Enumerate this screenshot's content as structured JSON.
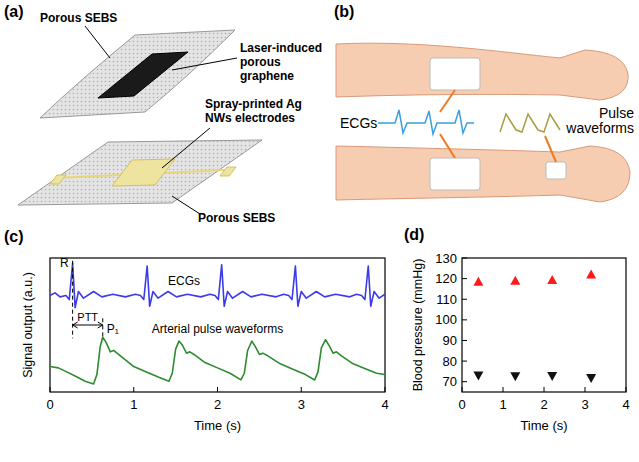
{
  "panel_labels": [
    "(a)",
    "(b)",
    "(c)",
    "(d)"
  ],
  "diagram_a": {
    "labels": [
      "Porous SEBS",
      "Laser-induced porous graphene",
      "Spray-printed Ag NWs electrodes",
      "Porous SEBS"
    ]
  },
  "diagram_b": {
    "labels": [
      "ECGs",
      "Pulse waveforms"
    ]
  },
  "chart_data": [
    {
      "type": "line",
      "x_label": "Time (s)",
      "y_label": "Signal output (a.u.)",
      "xlim": [
        0,
        4
      ],
      "xticks": [
        0,
        1,
        2,
        3,
        4
      ],
      "ylim": [
        0,
        10
      ],
      "tick_labels": "x",
      "series": [
        {
          "name": "ECGs",
          "color": "#3b3bec",
          "x": [
            0,
            0.06,
            0.12,
            0.19,
            0.23,
            0.27,
            0.3,
            0.34,
            0.4,
            0.52,
            0.62,
            0.75,
            0.9,
            1.02,
            1.08,
            1.12,
            1.16,
            1.19,
            1.23,
            1.29,
            1.41,
            1.51,
            1.64,
            1.8,
            1.91,
            1.97,
            2.01,
            2.05,
            2.08,
            2.12,
            2.18,
            2.3,
            2.4,
            2.53,
            2.7,
            2.79,
            2.85,
            2.89,
            2.93,
            2.96,
            3.0,
            3.06,
            3.18,
            3.28,
            3.41,
            3.58,
            3.66,
            3.72,
            3.76,
            3.8,
            3.83,
            3.87,
            3.93,
            4.0
          ],
          "values": [
            7.2,
            7.4,
            7.1,
            7.2,
            6.9,
            9.6,
            6.3,
            7.5,
            7.0,
            7.5,
            7.1,
            7.3,
            7.1,
            7.3,
            7.2,
            6.9,
            9.4,
            6.4,
            7.5,
            7.0,
            7.5,
            7.1,
            7.3,
            7.1,
            7.3,
            7.2,
            6.9,
            9.5,
            6.4,
            7.5,
            7.0,
            7.5,
            7.1,
            7.3,
            7.1,
            7.3,
            7.2,
            6.9,
            9.4,
            6.4,
            7.5,
            7.0,
            7.5,
            7.1,
            7.3,
            7.1,
            7.3,
            7.2,
            6.9,
            9.4,
            6.4,
            7.5,
            7.0,
            7.3
          ]
        },
        {
          "name": "Arterial pulse waveforms",
          "color": "#2e8b2e",
          "x": [
            0,
            0.1,
            0.2,
            0.3,
            0.42,
            0.52,
            0.56,
            0.6,
            0.63,
            0.67,
            0.72,
            0.76,
            0.8,
            0.9,
            1.0,
            1.15,
            1.3,
            1.42,
            1.46,
            1.5,
            1.54,
            1.58,
            1.63,
            1.67,
            1.72,
            1.85,
            2.0,
            2.15,
            2.28,
            2.32,
            2.36,
            2.41,
            2.45,
            2.5,
            2.54,
            2.6,
            2.75,
            2.9,
            3.05,
            3.16,
            3.2,
            3.24,
            3.29,
            3.33,
            3.38,
            3.42,
            3.48,
            3.62,
            3.78,
            3.9,
            4.0
          ],
          "values": [
            1.9,
            1.8,
            1.5,
            1.2,
            0.8,
            0.6,
            1.3,
            3.4,
            4.1,
            3.7,
            3.0,
            3.1,
            2.9,
            2.4,
            1.9,
            1.5,
            1.1,
            0.8,
            1.4,
            3.2,
            3.8,
            3.5,
            2.9,
            3.0,
            2.8,
            2.2,
            1.8,
            1.4,
            0.9,
            1.4,
            3.1,
            3.8,
            3.4,
            2.8,
            2.9,
            2.7,
            2.1,
            1.7,
            1.3,
            0.9,
            1.5,
            3.3,
            3.9,
            3.5,
            2.9,
            3.0,
            2.7,
            2.1,
            1.7,
            1.4,
            1.3
          ]
        }
      ],
      "annotations": [
        {
          "text": "R",
          "x": 0.27
        },
        {
          "text": "PTT",
          "x": [
            0.27,
            0.63
          ]
        },
        {
          "text": "P₁",
          "x": 0.63
        }
      ]
    },
    {
      "type": "scatter",
      "x_label": "Time (s)",
      "y_label": "Blood pressure (mmHg)",
      "xlim": [
        0,
        4
      ],
      "xticks": [
        0,
        1,
        2,
        3,
        4
      ],
      "ylim": [
        65,
        130
      ],
      "yticks": [
        70,
        80,
        90,
        100,
        110,
        120,
        130
      ],
      "x": [
        0.4,
        1.3,
        2.2,
        3.15
      ],
      "series": [
        {
          "color": "#ff1a1a",
          "marker": "triangle-up",
          "values": [
            118.5,
            119,
            119.3,
            122
          ]
        },
        {
          "color": "#111111",
          "marker": "triangle-down",
          "values": [
            73,
            72.7,
            72.8,
            71.8
          ]
        }
      ]
    }
  ]
}
